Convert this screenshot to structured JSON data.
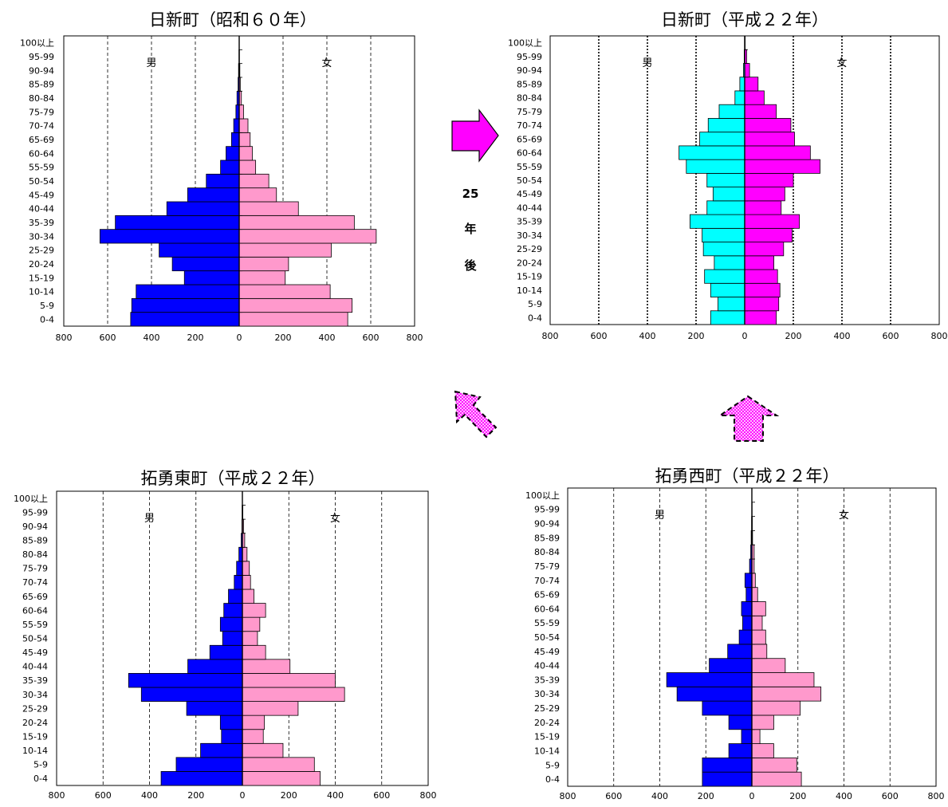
{
  "age_groups": [
    "0-4",
    "5-9",
    "10-14",
    "15-19",
    "20-24",
    "25-29",
    "30-34",
    "35-39",
    "40-44",
    "45-49",
    "50-54",
    "55-59",
    "60-64",
    "65-69",
    "70-74",
    "75-79",
    "80-84",
    "85-89",
    "90-94",
    "95-99",
    "100以上"
  ],
  "arrow_text": [
    "25",
    "年",
    "後"
  ],
  "colors": {
    "male_dark": "#0000ff",
    "female_light": "#ff99cc",
    "male_cyan": "#00ffff",
    "female_magenta": "#ff00ff",
    "arrow": "#ff00ff"
  },
  "chart_data": [
    {
      "type": "bar",
      "title": "日新町（昭和６０年）",
      "male_label": "男",
      "female_label": "女",
      "xlim": [
        -800,
        800
      ],
      "x_ticks": [
        "800",
        "600",
        "400",
        "200",
        "0",
        "200",
        "400",
        "600",
        "800"
      ],
      "categories": [
        "0-4",
        "5-9",
        "10-14",
        "15-19",
        "20-24",
        "25-29",
        "30-34",
        "35-39",
        "40-44",
        "45-49",
        "50-54",
        "55-59",
        "60-64",
        "65-69",
        "70-74",
        "75-79",
        "80-84",
        "85-89",
        "90-94",
        "95-99",
        "100以上"
      ],
      "series": [
        {
          "name": "男",
          "values": [
            495,
            490,
            470,
            250,
            305,
            365,
            635,
            565,
            330,
            235,
            150,
            85,
            60,
            35,
            25,
            15,
            10,
            5,
            3,
            1,
            0
          ]
        },
        {
          "name": "女",
          "values": [
            495,
            515,
            415,
            210,
            225,
            420,
            625,
            525,
            270,
            170,
            135,
            75,
            60,
            50,
            40,
            20,
            10,
            5,
            3,
            1,
            0
          ]
        }
      ]
    },
    {
      "type": "bar",
      "title": "日新町（平成２２年）",
      "male_label": "男",
      "female_label": "女",
      "xlim": [
        -800,
        800
      ],
      "x_ticks": [
        "800",
        "600",
        "400",
        "200",
        "0",
        "200",
        "400",
        "600",
        "800"
      ],
      "categories": [
        "0-4",
        "5-9",
        "10-14",
        "15-19",
        "20-24",
        "25-29",
        "30-34",
        "35-39",
        "40-44",
        "45-49",
        "50-54",
        "55-59",
        "60-64",
        "65-69",
        "70-74",
        "75-79",
        "80-84",
        "85-89",
        "90-94",
        "95-99",
        "100以上"
      ],
      "series": [
        {
          "name": "男",
          "values": [
            140,
            110,
            140,
            165,
            125,
            170,
            175,
            225,
            155,
            130,
            155,
            240,
            270,
            185,
            150,
            105,
            40,
            20,
            5,
            2,
            0
          ]
        },
        {
          "name": "女",
          "values": [
            130,
            140,
            145,
            135,
            120,
            160,
            195,
            225,
            150,
            165,
            200,
            310,
            270,
            205,
            190,
            130,
            80,
            55,
            20,
            8,
            2
          ]
        }
      ]
    },
    {
      "type": "bar",
      "title": "拓勇東町（平成２２年）",
      "male_label": "男",
      "female_label": "女",
      "xlim": [
        -800,
        800
      ],
      "x_ticks": [
        "800",
        "600",
        "400",
        "200",
        "0",
        "200",
        "400",
        "600",
        "800"
      ],
      "categories": [
        "0-4",
        "5-9",
        "10-14",
        "15-19",
        "20-24",
        "25-29",
        "30-34",
        "35-39",
        "40-44",
        "45-49",
        "50-54",
        "55-59",
        "60-64",
        "65-69",
        "70-74",
        "75-79",
        "80-84",
        "85-89",
        "90-94",
        "95-99",
        "100以上"
      ],
      "series": [
        {
          "name": "男",
          "values": [
            350,
            285,
            180,
            90,
            95,
            240,
            435,
            490,
            235,
            140,
            85,
            95,
            80,
            60,
            35,
            25,
            15,
            5,
            2,
            1,
            0
          ]
        },
        {
          "name": "女",
          "values": [
            335,
            310,
            175,
            90,
            95,
            240,
            440,
            400,
            205,
            100,
            65,
            75,
            100,
            50,
            35,
            30,
            20,
            10,
            5,
            2,
            0
          ]
        }
      ]
    },
    {
      "type": "bar",
      "title": "拓勇西町（平成２２年）",
      "male_label": "男",
      "female_label": "女",
      "xlim": [
        -800,
        800
      ],
      "x_ticks": [
        "800",
        "600",
        "400",
        "200",
        "0",
        "200",
        "400",
        "600",
        "800"
      ],
      "categories": [
        "0-4",
        "5-9",
        "10-14",
        "15-19",
        "20-24",
        "25-29",
        "30-34",
        "35-39",
        "40-44",
        "45-49",
        "50-54",
        "55-59",
        "60-64",
        "65-69",
        "70-74",
        "75-79",
        "80-84",
        "85-89",
        "90-94",
        "95-99",
        "100以上"
      ],
      "series": [
        {
          "name": "男",
          "values": [
            215,
            215,
            100,
            45,
            100,
            215,
            325,
            370,
            185,
            105,
            55,
            40,
            45,
            25,
            30,
            10,
            5,
            3,
            1,
            0,
            0
          ]
        },
        {
          "name": "女",
          "values": [
            215,
            195,
            95,
            35,
            95,
            210,
            300,
            270,
            145,
            65,
            60,
            45,
            60,
            25,
            15,
            10,
            10,
            3,
            2,
            1,
            0
          ]
        }
      ]
    }
  ]
}
